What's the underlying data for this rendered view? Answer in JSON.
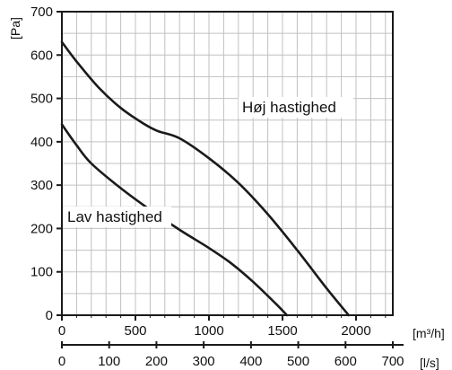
{
  "chart_data": {
    "type": "line",
    "title": "",
    "ylabel": "[Pa]",
    "xlabel": "[m³/h]",
    "xlabel_secondary": "[l/s]",
    "xlim": [
      0,
      2250
    ],
    "ylim": [
      0,
      700
    ],
    "x_ticks": [
      0,
      500,
      1000,
      1500,
      2000
    ],
    "x_tick_labels": [
      "0",
      "500",
      "1000",
      "1500",
      "2000"
    ],
    "y_ticks": [
      0,
      100,
      200,
      300,
      400,
      500,
      600,
      700
    ],
    "y_tick_labels": [
      "0",
      "100",
      "200",
      "300",
      "400",
      "500",
      "600",
      "700"
    ],
    "secondary_x_ticks": [
      0,
      100,
      200,
      300,
      400,
      500,
      600,
      700
    ],
    "secondary_x_tick_labels": [
      "0",
      "100",
      "200",
      "300",
      "400",
      "500",
      "600",
      "700"
    ],
    "grid": true,
    "series": [
      {
        "name": "Høj hastighed",
        "x": [
          0,
          100,
          250,
          400,
          550,
          650,
          800,
          1000,
          1200,
          1400,
          1600,
          1800,
          1950
        ],
        "y": [
          630,
          585,
          525,
          478,
          443,
          425,
          408,
          362,
          305,
          233,
          150,
          62,
          0
        ]
      },
      {
        "name": "Lav hastighed",
        "x": [
          0,
          100,
          200,
          400,
          600,
          800,
          1000,
          1150,
          1300,
          1450,
          1530
        ],
        "y": [
          440,
          392,
          350,
          293,
          243,
          197,
          155,
          120,
          77,
          28,
          0
        ]
      }
    ],
    "colors": {
      "line": "#1a1a1a",
      "grid": "#c0c0c0",
      "axis": "#1a1a1a"
    }
  }
}
